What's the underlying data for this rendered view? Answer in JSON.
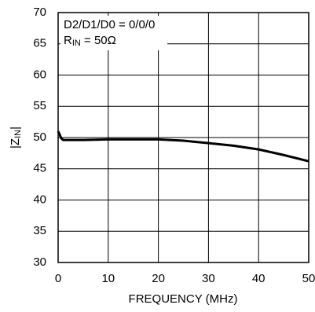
{
  "chart_data": {
    "type": "line",
    "x_label": "FREQUENCY (MHz)",
    "y_label": {
      "main": "|Z",
      "sub": "IN",
      "rest": "|"
    },
    "annotations": [
      "D2/D1/D0 = 0/0/0",
      {
        "main": "R",
        "sub": "IN",
        "rest": " = 50Ω"
      }
    ],
    "x": [
      0,
      0.3,
      0.6,
      1,
      1.5,
      2,
      5,
      10,
      15,
      20,
      25,
      30,
      35,
      40,
      45,
      50
    ],
    "series": [
      {
        "color": "#000000",
        "values": [
          51,
          50.5,
          49.9,
          49.6,
          49.6,
          49.6,
          49.6,
          49.7,
          49.7,
          49.7,
          49.5,
          49.1,
          48.7,
          48.1,
          47.2,
          46.2
        ]
      }
    ],
    "xlim": [
      0,
      50
    ],
    "xticks": [
      0,
      10,
      20,
      30,
      40,
      50
    ],
    "ylim": [
      30,
      70
    ],
    "yticks": [
      30,
      35,
      40,
      45,
      50,
      55,
      60,
      65,
      70
    ],
    "grid": true
  }
}
